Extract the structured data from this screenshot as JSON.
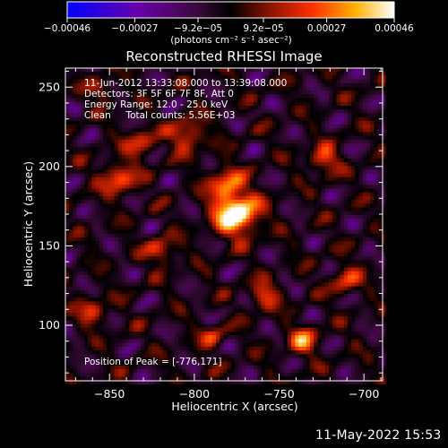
{
  "chart_data": {
    "type": "heatmap",
    "title": "Reconstructed RHESSI Image",
    "xlabel": "Heliocentric X (arcsec)",
    "ylabel": "Heliocentric Y (arcsec)",
    "xlim": [
      -876,
      -689
    ],
    "ylim": [
      65,
      262
    ],
    "x_ticks": [
      -850,
      -800,
      -750,
      -700
    ],
    "y_ticks": [
      100,
      150,
      200,
      250
    ],
    "colorbar": {
      "min": -0.00046,
      "max": 0.00046,
      "tick_values": [
        -0.00046,
        -0.00027,
        -9.2e-05,
        9.2e-05,
        0.00027,
        0.00046
      ],
      "tick_labels": [
        "-0.00046",
        "-0.00027",
        "-9.2e-05",
        "9.2e-05",
        "0.00027",
        "0.00046"
      ],
      "unit_label": "(photons cm⁻² s⁻¹ asec⁻²)",
      "colormap": [
        "#0000ff",
        "#6a00a8",
        "#3a0a3a",
        "#000000",
        "#8a1400",
        "#ff3000",
        "#ffb000",
        "#ffffff"
      ]
    },
    "annotations": [
      "11-Jun-2012 13:33:08.000 to 13:39:08.000",
      "Detectors: 3F 5F 6F 7F 8F, Att 0",
      "Energy Range: 12.0 - 25.0 keV",
      "Clean     Total counts: 5.56E+03"
    ],
    "peak_label": "Position of Peak = [-776,171]",
    "peak": {
      "x": -776,
      "y": 171
    }
  },
  "timestamp": "11-May-2022 15:53"
}
